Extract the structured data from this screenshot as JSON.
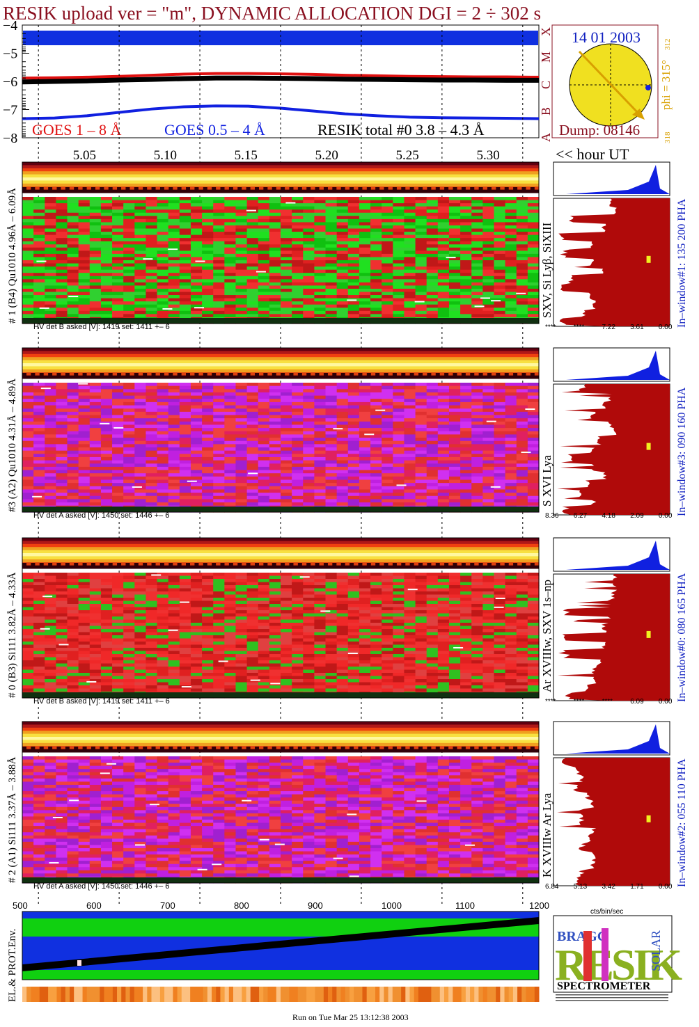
{
  "header": {
    "title": "RESIK upload ver = \"m\", DYNAMIC ALLOCATION  DGI =   2 ÷ 302 s"
  },
  "goes_panel": {
    "legend_red": "GOES 1 – 8 Å",
    "legend_blue": "GOES 0.5 – 4 Å",
    "legend_black": "RESIK total #0  3.8 – 4.3 Å",
    "class_letters": [
      "X",
      "M",
      "C",
      "B",
      "A"
    ],
    "colors": {
      "red": "#e01010",
      "blue": "#1020e0",
      "black": "#000000",
      "band": "#1030e0"
    }
  },
  "chart_data": [
    {
      "type": "line",
      "title": "RESIK upload ver = \"m\", DYNAMIC ALLOCATION  DGI =   2 ÷ 302 s",
      "xlabel": "<< hour UT",
      "ylabel": "",
      "x": [
        5.01,
        5.03,
        5.05,
        5.07,
        5.09,
        5.11,
        5.13,
        5.15,
        5.17,
        5.19,
        5.21,
        5.23,
        5.25,
        5.27,
        5.29,
        5.31,
        5.33
      ],
      "x_ticks": [
        "5.05",
        "5.10",
        "5.15",
        "5.20",
        "5.25",
        "5.30"
      ],
      "y_ticks": [
        "−4",
        "−5",
        "−6",
        "−7",
        "−8"
      ],
      "ylim": [
        -8,
        -4
      ],
      "series": [
        {
          "name": "GOES 1 – 8 Å",
          "values": [
            -5.88,
            -5.87,
            -5.85,
            -5.82,
            -5.78,
            -5.74,
            -5.72,
            -5.72,
            -5.73,
            -5.75,
            -5.78,
            -5.8,
            -5.82,
            -5.83,
            -5.84,
            -5.84,
            -5.85
          ]
        },
        {
          "name": "GOES 0.5 – 4 Å",
          "values": [
            -7.32,
            -7.3,
            -7.22,
            -7.1,
            -6.98,
            -6.9,
            -6.87,
            -6.88,
            -6.95,
            -7.05,
            -7.15,
            -7.22,
            -7.27,
            -7.29,
            -7.3,
            -7.31,
            -7.32
          ]
        },
        {
          "name": "RESIK total #0  3.8 – 4.3 Å",
          "values": [
            -6.02,
            -6.0,
            -5.98,
            -5.95,
            -5.93,
            -5.9,
            -5.88,
            -5.88,
            -5.89,
            -5.9,
            -5.92,
            -5.93,
            -5.94,
            -5.95,
            -5.95,
            -5.96,
            -5.96
          ]
        }
      ]
    },
    {
      "type": "heatmap",
      "xlim": [
        500,
        1200
      ],
      "x_ticks": [
        "500",
        "600",
        "700",
        "800",
        "900",
        "1000",
        "1100",
        "1200"
      ],
      "panels": [
        {
          "label": "# 1 (B4) Qu1010 4.96Å – 6.09Å",
          "line_ids": "SXV, Si Lyβ, SiXIII",
          "window": "In–window#1:  135 200 PHA",
          "hv": "HV det B asked [V]:  1419 set:  1411  +–    6",
          "spec_ticks": [
            "****",
            "****",
            "7.22",
            "3.61",
            "0.00"
          ],
          "spec_peak": [
            0.55,
            0.5,
            0.9,
            0.6,
            0.98,
            0.7,
            0.95,
            0.7,
            0.6,
            0.9,
            0.98,
            0.75,
            0.7,
            0.8,
            0.98,
            0.6
          ]
        },
        {
          "label": "#3 (A2) Qu1010  4.31Å – 4.89Å",
          "line_ids": "S XVI Lya",
          "window": "In–window#3:  090 160 PHA",
          "hv": "HV det A asked [V]:  1450 set:  1446  +–    6",
          "spec_ticks": [
            "8.36",
            "6.27",
            "4.18",
            "2.09",
            "0.00"
          ],
          "spec_peak": [
            0.8,
            0.55,
            0.6,
            0.7,
            0.55,
            0.5,
            0.65,
            0.7,
            0.9,
            0.7,
            0.6,
            0.75,
            0.8,
            0.7,
            0.95,
            0.9
          ]
        },
        {
          "label": "# 0 (B3) Si111  3.82Å – 4.33Å",
          "line_ids": "Ar XVIIIw,  SXV 1s–np",
          "window": "In–window#0:  080 165 PHA",
          "hv": "HV det B asked [V]:  1419 set:  1411  +–    6",
          "spec_ticks": [
            "****",
            "****",
            "****",
            "6.09",
            "0.00"
          ],
          "spec_peak": [
            0.5,
            0.5,
            0.52,
            0.55,
            0.95,
            0.55,
            0.6,
            0.98,
            0.6,
            0.95,
            0.65,
            0.7,
            0.7,
            0.75,
            0.9,
            0.6
          ]
        },
        {
          "label": "# 2 (A1) Si111  3.37Å – 3.88Å",
          "line_ids": "K XVIIIw  Ar Lya",
          "window": "In–window#2:  055 110 PHA",
          "hv": "HV det A asked [V]:  1450 set:  1446  +–    6",
          "spec_ticks": [
            "6.84",
            "5.13",
            "3.42",
            "1.71",
            "0.00"
          ],
          "spec_peak": [
            0.95,
            0.85,
            0.8,
            0.85,
            0.75,
            0.7,
            0.8,
            0.8,
            0.7,
            0.75,
            0.8,
            0.7,
            0.7,
            0.8,
            0.85,
            0.8
          ]
        }
      ]
    }
  ],
  "sun_panel": {
    "date": "14 01 2003",
    "dump": "Dump: 08146",
    "phi": "phi = 315°",
    "phi_top": "312",
    "phi_bottom": "318",
    "sun_color": "#f0e020",
    "arrow_color": "#d8a000"
  },
  "spectrum_xlabel": "cts/bin/sec",
  "env_panel": {
    "label": "EL.& PROT.Env."
  },
  "logo": {
    "letters": "RESIK",
    "words": [
      "BRAGG",
      "SOLAR"
    ],
    "caption": "SPECTROMETER"
  },
  "footer": {
    "run": "Run on Tue Mar 25 13:12:38 2003"
  }
}
